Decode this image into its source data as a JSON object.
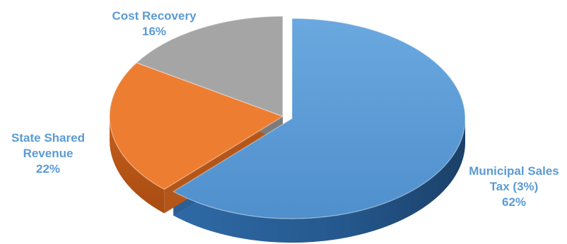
{
  "chart_data": {
    "type": "pie",
    "style": "3d-exploded",
    "title": "",
    "slices": [
      {
        "label": "Municipal Sales Tax (3%)",
        "value": 62,
        "pct_text": "62%",
        "color": "#5b9bd5"
      },
      {
        "label": "State Shared Revenue",
        "value": 22,
        "pct_text": "22%",
        "color": "#ed7d31"
      },
      {
        "label": "Cost Recovery",
        "value": 16,
        "pct_text": "16%",
        "color": "#a5a5a5"
      }
    ],
    "label_color": "#5b9bd5",
    "exploded_slice": "Municipal Sales Tax (3%)"
  }
}
